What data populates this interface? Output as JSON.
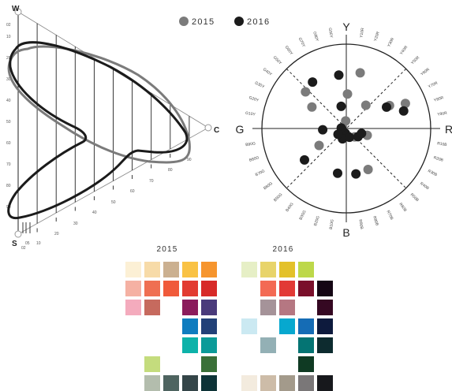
{
  "legend": {
    "entries": [
      {
        "label": "2015",
        "color": "#7b7b7b"
      },
      {
        "label": "2016",
        "color": "#1b1b1b"
      }
    ]
  },
  "chart_data": [
    {
      "type": "line",
      "subtype": "triangle-plot",
      "corner_labels": {
        "top": "W",
        "bottom": "S",
        "right": "C"
      },
      "w_scale_ticks": [
        "02",
        "10",
        "20",
        "30",
        "40",
        "50",
        "60",
        "70",
        "80",
        "90"
      ],
      "s_scale_ticks": [
        "02",
        "05",
        "10"
      ],
      "c_scale_ticks": [
        "20",
        "30",
        "40",
        "50",
        "60",
        "70",
        "80",
        "90"
      ],
      "series": [
        {
          "name": "2015",
          "color": "#7b7b7b"
        },
        {
          "name": "2016",
          "color": "#1b1b1b"
        }
      ]
    },
    {
      "type": "scatter",
      "subtype": "hue-circle",
      "axis_labels": {
        "top": "Y",
        "right": "R",
        "bottom": "B",
        "left": "G"
      },
      "hue_ticks": [
        "Y",
        "Y10R",
        "Y20R",
        "Y30R",
        "Y40R",
        "Y50R",
        "Y60R",
        "Y70R",
        "Y80R",
        "Y90R",
        "R",
        "R10B",
        "R20B",
        "R30B",
        "R40B",
        "R50B",
        "R60B",
        "R70B",
        "R80B",
        "R90B",
        "B",
        "B10G",
        "B20G",
        "B30G",
        "B40G",
        "B50G",
        "B60G",
        "B70G",
        "B80G",
        "B90G",
        "G",
        "G10Y",
        "G20Y",
        "G30Y",
        "G40Y",
        "G50Y",
        "G60Y",
        "G70Y",
        "G80Y",
        "G90Y"
      ],
      "series": [
        {
          "name": "2015",
          "color": "#7b7b7b",
          "points": [
            {
              "hue": 14,
              "r": 0.68
            },
            {
              "hue": 2,
              "r": 0.41
            },
            {
              "hue": 40,
              "r": 0.36
            },
            {
              "hue": 62,
              "r": 0.58
            },
            {
              "hue": 67,
              "r": 0.76
            },
            {
              "hue": 135,
              "r": 0.14
            },
            {
              "hue": 108,
              "r": 0.26
            },
            {
              "hue": 152,
              "r": 0.55
            },
            {
              "hue": 238,
              "r": 0.38
            },
            {
              "hue": 302,
              "r": 0.48
            },
            {
              "hue": 312,
              "r": 0.65
            },
            {
              "hue": 355,
              "r": 0.09
            }
          ]
        },
        {
          "name": "2016",
          "color": "#1b1b1b",
          "points": [
            {
              "hue": 352,
              "r": 0.64
            },
            {
              "hue": 324,
              "r": 0.68
            },
            {
              "hue": 347,
              "r": 0.27
            },
            {
              "hue": 73,
              "r": 0.71
            },
            {
              "hue": 62,
              "r": 0.54
            },
            {
              "hue": 267,
              "r": 0.28
            },
            {
              "hue": 233,
              "r": 0.62
            },
            {
              "hue": 191,
              "r": 0.54
            },
            {
              "hue": 168,
              "r": 0.55
            },
            {
              "hue": 190,
              "r": 0.06
            },
            {
              "hue": 200,
              "r": 0.13
            },
            {
              "hue": 125,
              "r": 0.17
            },
            {
              "hue": 108,
              "r": 0.19
            },
            {
              "hue": 160,
              "r": 0.11
            },
            {
              "hue": 275,
              "r": 0.06
            },
            {
              "hue": 235,
              "r": 0.12
            }
          ]
        }
      ]
    },
    {
      "type": "swatch-grid",
      "title": "2015",
      "rows": [
        [
          "#fcf0d5",
          "#f7dba8",
          "#cbb090",
          "#f9c244",
          "#f6952e"
        ],
        [
          "#f5b1a3",
          "#ef6f52",
          "#f05a3a",
          "#e23b31",
          "#d72a28"
        ],
        [
          "#f4abbd",
          "#c66a5e",
          null,
          "#8b1c5c",
          "#4a3b7b"
        ],
        [
          null,
          null,
          null,
          "#0f7dbf",
          "#224178"
        ],
        [
          null,
          null,
          null,
          "#0db2a9",
          "#0c9b99"
        ],
        [
          null,
          "#c4dc7d",
          null,
          null,
          "#3a7038"
        ],
        [
          null,
          "#b3bdad",
          "#4e6460",
          "#344548",
          "#0d3337"
        ]
      ]
    },
    {
      "type": "swatch-grid",
      "title": "2016",
      "rows": [
        [
          "#e6efc6",
          "#e8d46a",
          "#e3c12a",
          "#bdd84a",
          null
        ],
        [
          null,
          "#f36a54",
          "#e23a36",
          "#7a0f2b",
          "#150614"
        ],
        [
          null,
          "#a59399",
          "#b57782",
          null,
          "#350822"
        ],
        [
          "#cbe9f2",
          null,
          "#07a8cf",
          "#156cb5",
          "#0d1a3d"
        ],
        [
          null,
          "#93b0b5",
          null,
          "#047473",
          "#0d2b2f"
        ],
        [
          null,
          null,
          null,
          "#0f3a23",
          null
        ],
        [
          "#f3ebde",
          "#cdbca8",
          "#a39a8b",
          "#7a7778",
          "#17181c"
        ]
      ]
    }
  ]
}
